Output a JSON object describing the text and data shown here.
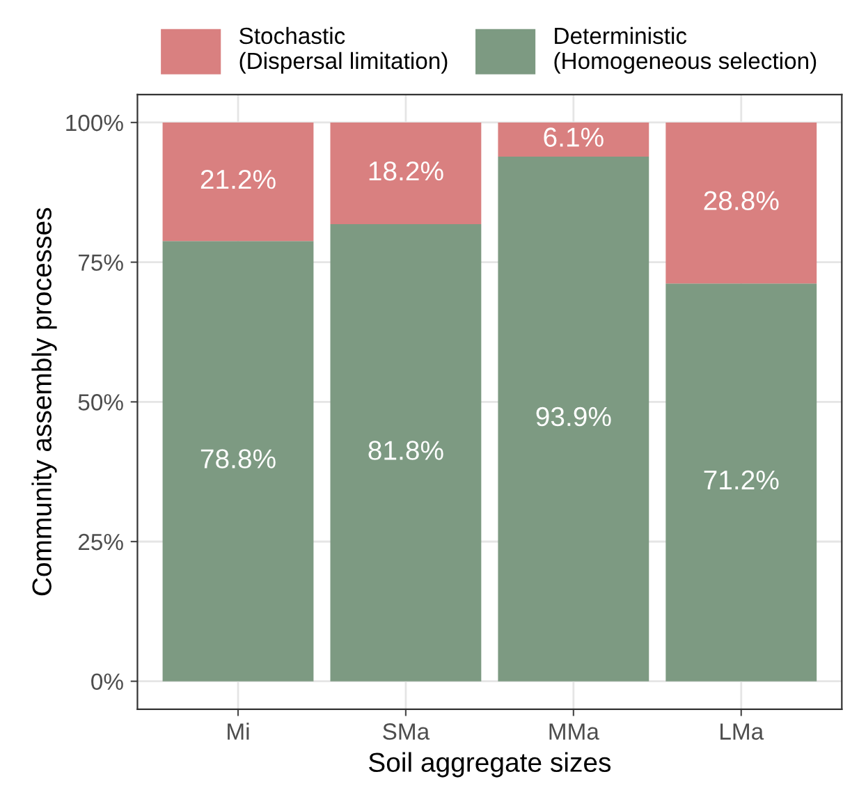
{
  "chart_data": {
    "type": "bar",
    "stacked": true,
    "xlabel": "Soil aggregate sizes",
    "ylabel": "Community assembly processes",
    "categories": [
      "Mi",
      "SMa",
      "MMa",
      "LMa"
    ],
    "series": [
      {
        "name": "Deterministic\n(Homogeneous selection)",
        "color": "#7d9a82",
        "values": [
          78.8,
          81.8,
          93.9,
          71.2
        ],
        "value_labels": [
          "78.8%",
          "81.8%",
          "93.9%",
          "71.2%"
        ]
      },
      {
        "name": "Stochastic\n(Dispersal limitation)",
        "color": "#d98080",
        "values": [
          21.2,
          18.2,
          6.1,
          28.8
        ],
        "value_labels": [
          "21.2%",
          "18.2%",
          "6.1%",
          "28.8%"
        ]
      }
    ],
    "ylim": [
      -5,
      105
    ],
    "yticks": [
      {
        "value": 0,
        "label": "0%"
      },
      {
        "value": 25,
        "label": "25%"
      },
      {
        "value": 50,
        "label": "50%"
      },
      {
        "value": 75,
        "label": "75%"
      },
      {
        "value": 100,
        "label": "100%"
      }
    ],
    "grid": true,
    "legend": "top"
  }
}
